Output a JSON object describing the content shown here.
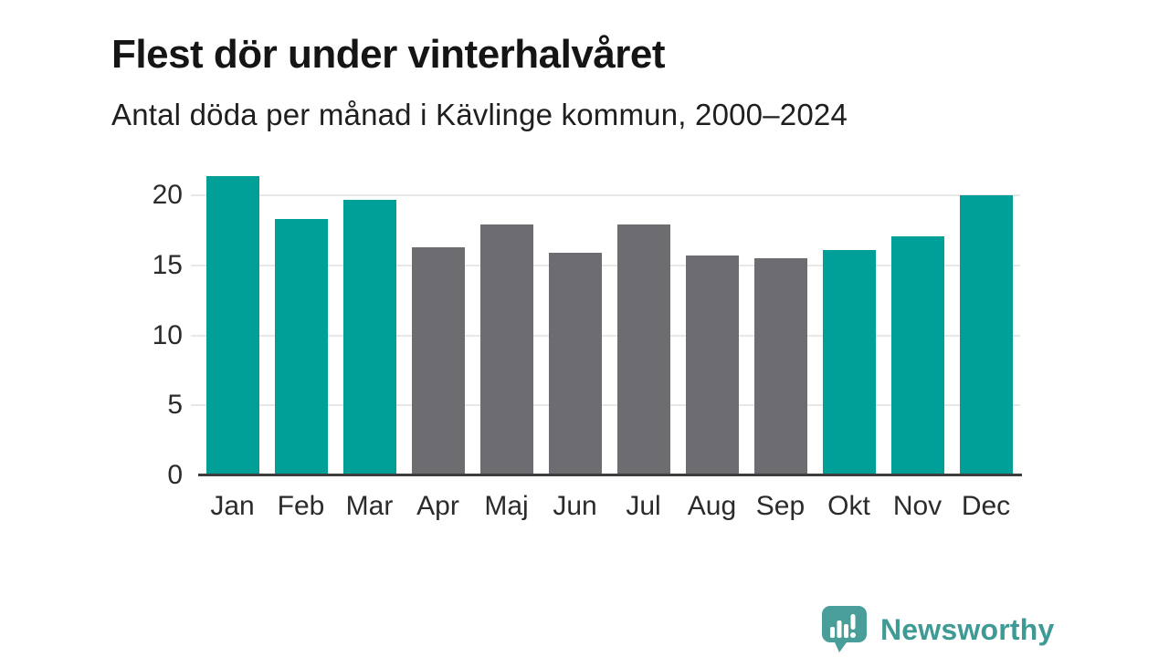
{
  "chart_data": {
    "type": "bar",
    "title": "Flest dör under vinterhalvåret",
    "subtitle": "Antal döda per månad i Kävlinge kommun, 2000–2024",
    "categories": [
      "Jan",
      "Feb",
      "Mar",
      "Apr",
      "Maj",
      "Jun",
      "Jul",
      "Aug",
      "Sep",
      "Okt",
      "Nov",
      "Dec"
    ],
    "values": [
      21.4,
      18.3,
      19.7,
      16.3,
      17.9,
      15.9,
      17.9,
      15.7,
      15.5,
      16.1,
      17.1,
      20.0
    ],
    "highlight": [
      true,
      true,
      true,
      false,
      false,
      false,
      false,
      false,
      false,
      true,
      true,
      true
    ],
    "colors": {
      "highlight": "#00A099",
      "muted": "#6D6C71",
      "gridline": "#E8E8E8",
      "axis": "#3D3D3D",
      "tick_label": "#2B2B2B"
    },
    "xlabel": "",
    "ylabel": "",
    "ylim": [
      0,
      21.9
    ],
    "yticks": [
      0,
      5,
      10,
      15,
      20
    ],
    "grid": "horizontal",
    "legend": "none"
  },
  "footer": {
    "brand": "Newsworthy",
    "brand_color": "#3E9A95",
    "icon": "newsworthy-speech-bubble-bar-chart-icon",
    "icon_color": "#4A9E99",
    "icon_glyph_color": "#FFFFFF"
  }
}
